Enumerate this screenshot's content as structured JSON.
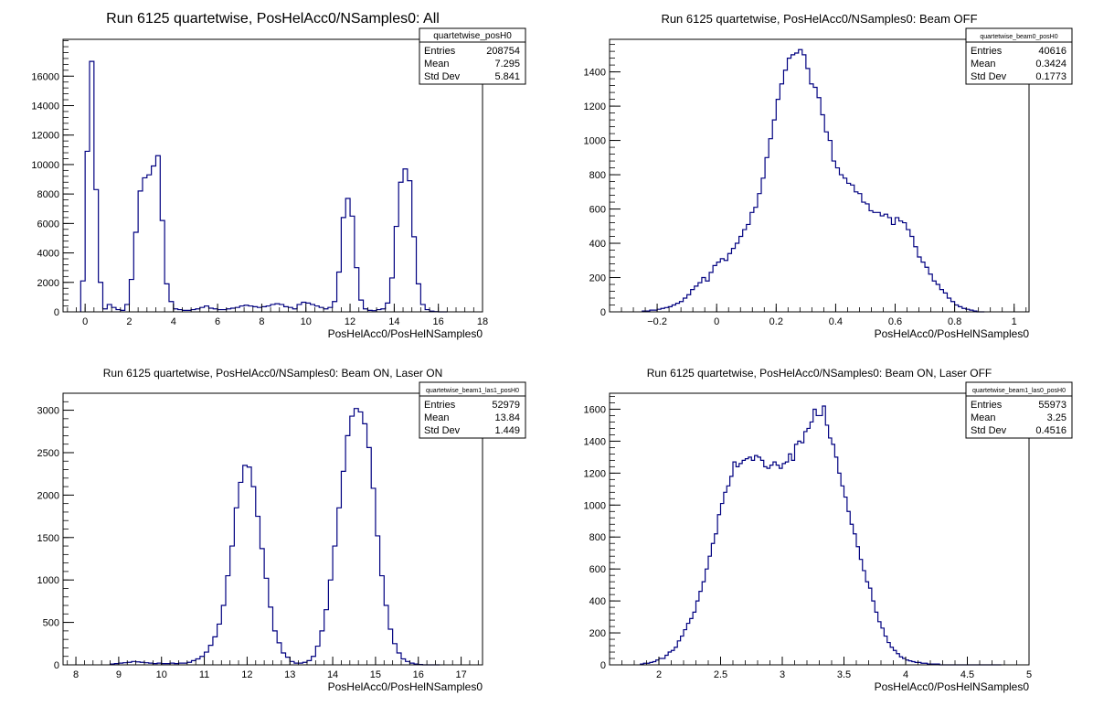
{
  "colors": {
    "histogram_line": "#000080",
    "frame": "#000000",
    "background": "#ffffff"
  },
  "chart_data": [
    {
      "type": "histogram",
      "title": "Run 6125 quartetwise, PosHelAcc0/NSamples0: All",
      "xlabel": "PosHelAcc0/PosHelNSamples0",
      "xlim": [
        -1,
        18
      ],
      "ylim": [
        0,
        18500
      ],
      "xticks": [
        0,
        2,
        4,
        6,
        8,
        10,
        12,
        14,
        16,
        18
      ],
      "yticks": [
        0,
        2000,
        4000,
        6000,
        8000,
        10000,
        12000,
        14000,
        16000
      ],
      "stats": {
        "name": "quartetwise_posH0",
        "entries": "208754",
        "mean": "7.295",
        "stddev": "5.841"
      },
      "bin_width": 0.2,
      "bins_x0": [
        -0.2,
        0.0,
        0.2,
        0.4,
        0.6,
        0.8,
        1.0,
        1.2,
        1.4,
        1.6,
        1.8,
        2.0,
        2.2,
        2.4,
        2.6,
        2.8,
        3.0,
        3.2,
        3.4,
        3.6,
        3.8,
        4.0,
        4.2,
        4.4,
        4.6,
        4.8,
        5.0,
        5.2,
        5.4,
        5.6,
        5.8,
        6.0,
        6.2,
        6.4,
        6.6,
        6.8,
        7.0,
        7.2,
        7.4,
        7.6,
        7.8,
        8.0,
        8.2,
        8.4,
        8.6,
        8.8,
        9.0,
        9.2,
        9.4,
        9.6,
        9.8,
        10.0,
        10.2,
        10.4,
        10.6,
        10.8,
        11.0,
        11.2,
        11.4,
        11.6,
        11.8,
        12.0,
        12.2,
        12.4,
        12.6,
        12.8,
        13.0,
        13.2,
        13.4,
        13.6,
        13.8,
        14.0,
        14.2,
        14.4,
        14.6,
        14.8,
        15.0,
        15.2,
        15.4,
        15.6,
        15.8,
        16.0,
        16.2
      ],
      "values": [
        2100,
        10900,
        17000,
        8300,
        2000,
        200,
        500,
        300,
        150,
        100,
        500,
        2200,
        5400,
        8200,
        9100,
        9300,
        9900,
        10600,
        6200,
        1900,
        700,
        200,
        150,
        100,
        100,
        150,
        200,
        300,
        400,
        250,
        200,
        150,
        150,
        200,
        250,
        300,
        400,
        450,
        400,
        350,
        300,
        350,
        400,
        500,
        550,
        500,
        350,
        300,
        200,
        500,
        650,
        600,
        500,
        400,
        300,
        200,
        300,
        700,
        2700,
        6400,
        7700,
        6500,
        3000,
        800,
        200,
        100,
        80,
        150,
        200,
        600,
        2300,
        5800,
        8800,
        9700,
        8900,
        5100,
        1900,
        500,
        150,
        50,
        20,
        0,
        0
      ]
    },
    {
      "type": "histogram",
      "title": "Run 6125 quartetwise, PosHelAcc0/NSamples0: Beam OFF",
      "xlabel": "PosHelAcc0/PosHelNSamples0",
      "xlim": [
        -0.36,
        1.05
      ],
      "ylim": [
        0,
        1590
      ],
      "xticks": [
        -0.2,
        0,
        0.2,
        0.4,
        0.6,
        0.8,
        1
      ],
      "xtick_labels": [
        "−0.2",
        "0",
        "0.2",
        "0.4",
        "0.6",
        "0.8",
        "1"
      ],
      "yticks": [
        0,
        200,
        400,
        600,
        800,
        1000,
        1200,
        1400
      ],
      "stats": {
        "name": "quartetwise_beam0_posH0",
        "entries": "40616",
        "mean": "0.3424",
        "stddev": "0.1773"
      },
      "bin_width": 0.0125,
      "bins_x0": [
        -0.25,
        -0.2375,
        -0.225,
        -0.2125,
        -0.2,
        -0.1875,
        -0.175,
        -0.1625,
        -0.15,
        -0.1375,
        -0.125,
        -0.1125,
        -0.1,
        -0.0875,
        -0.075,
        -0.0625,
        -0.05,
        -0.0375,
        -0.025,
        -0.0125,
        0.0,
        0.0125,
        0.025,
        0.0375,
        0.05,
        0.0625,
        0.075,
        0.0875,
        0.1,
        0.1125,
        0.125,
        0.1375,
        0.15,
        0.1625,
        0.175,
        0.1875,
        0.2,
        0.2125,
        0.225,
        0.2375,
        0.25,
        0.2625,
        0.275,
        0.2875,
        0.3,
        0.3125,
        0.325,
        0.3375,
        0.35,
        0.3625,
        0.375,
        0.3875,
        0.4,
        0.4125,
        0.425,
        0.4375,
        0.45,
        0.4625,
        0.475,
        0.4875,
        0.5,
        0.5125,
        0.525,
        0.5375,
        0.55,
        0.5625,
        0.575,
        0.5875,
        0.6,
        0.6125,
        0.625,
        0.6375,
        0.65,
        0.6625,
        0.675,
        0.6875,
        0.7,
        0.7125,
        0.725,
        0.7375,
        0.75,
        0.7625,
        0.775,
        0.7875,
        0.8,
        0.8125,
        0.825,
        0.8375,
        0.85,
        0.8625,
        0.875,
        0.8875
      ],
      "values": [
        5,
        5,
        10,
        10,
        15,
        20,
        25,
        30,
        40,
        50,
        60,
        80,
        100,
        130,
        150,
        170,
        200,
        180,
        230,
        270,
        290,
        310,
        300,
        340,
        370,
        400,
        440,
        480,
        510,
        580,
        610,
        690,
        780,
        900,
        1010,
        1120,
        1240,
        1330,
        1410,
        1480,
        1500,
        1510,
        1530,
        1500,
        1420,
        1330,
        1310,
        1250,
        1150,
        1050,
        1000,
        880,
        840,
        800,
        780,
        750,
        740,
        700,
        690,
        640,
        630,
        590,
        580,
        580,
        560,
        570,
        550,
        510,
        550,
        530,
        520,
        480,
        440,
        380,
        320,
        290,
        260,
        220,
        180,
        160,
        130,
        110,
        80,
        60,
        40,
        30,
        20,
        15,
        10,
        5,
        0,
        0
      ]
    },
    {
      "type": "histogram",
      "title": "Run 6125 quartetwise, PosHelAcc0/NSamples0: Beam ON, Laser ON",
      "xlabel": "PosHelAcc0/PosHelNSamples0",
      "xlim": [
        7.7,
        17.5
      ],
      "ylim": [
        0,
        3200
      ],
      "xticks": [
        8,
        9,
        10,
        11,
        12,
        13,
        14,
        15,
        16,
        17
      ],
      "yticks": [
        0,
        500,
        1000,
        1500,
        2000,
        2500,
        3000
      ],
      "stats": {
        "name": "quartetwise_beam1_las1_posH0",
        "entries": "52979",
        "mean": "13.84",
        "stddev": "1.449"
      },
      "bin_width": 0.1,
      "bins_x0": [
        8.8,
        8.9,
        9.0,
        9.1,
        9.2,
        9.3,
        9.4,
        9.5,
        9.6,
        9.7,
        9.8,
        9.9,
        10.0,
        10.1,
        10.2,
        10.3,
        10.4,
        10.5,
        10.6,
        10.7,
        10.8,
        10.9,
        11.0,
        11.1,
        11.2,
        11.3,
        11.4,
        11.5,
        11.6,
        11.7,
        11.8,
        11.9,
        12.0,
        12.1,
        12.2,
        12.3,
        12.4,
        12.5,
        12.6,
        12.7,
        12.8,
        12.9,
        13.0,
        13.1,
        13.2,
        13.3,
        13.4,
        13.5,
        13.6,
        13.7,
        13.8,
        13.9,
        14.0,
        14.1,
        14.2,
        14.3,
        14.4,
        14.5,
        14.6,
        14.7,
        14.8,
        14.9,
        15.0,
        15.1,
        15.2,
        15.3,
        15.4,
        15.5,
        15.6,
        15.7,
        15.8,
        15.9,
        16.0,
        16.1,
        16.2,
        16.3,
        16.4
      ],
      "values": [
        10,
        15,
        20,
        25,
        30,
        40,
        35,
        30,
        25,
        20,
        15,
        20,
        15,
        15,
        20,
        15,
        20,
        20,
        30,
        50,
        70,
        100,
        150,
        230,
        330,
        480,
        700,
        1050,
        1400,
        1850,
        2150,
        2350,
        2330,
        2100,
        1750,
        1370,
        1020,
        680,
        400,
        260,
        140,
        90,
        40,
        20,
        20,
        30,
        50,
        100,
        220,
        400,
        650,
        1000,
        1400,
        1850,
        2280,
        2700,
        2930,
        3020,
        2980,
        2840,
        2560,
        2080,
        1520,
        1050,
        700,
        420,
        250,
        140,
        70,
        40,
        20,
        10,
        5,
        0,
        0,
        0,
        0
      ]
    },
    {
      "type": "histogram",
      "title": "Run 6125 quartetwise, PosHelAcc0/NSamples0: Beam ON, Laser OFF",
      "xlabel": "PosHelAcc0/PosHelNSamples0",
      "xlim": [
        1.6,
        5.0
      ],
      "ylim": [
        0,
        1700
      ],
      "xticks": [
        2,
        2.5,
        3,
        3.5,
        4,
        4.5,
        5
      ],
      "yticks": [
        0,
        200,
        400,
        600,
        800,
        1000,
        1200,
        1400,
        1600
      ],
      "stats": {
        "name": "quartetwise_beam1_las0_posH0",
        "entries": "55973",
        "mean": "3.25",
        "stddev": "0.4516"
      },
      "bin_width": 0.025,
      "bins_x0": [
        1.85,
        1.875,
        1.9,
        1.925,
        1.95,
        1.975,
        2.0,
        2.025,
        2.05,
        2.075,
        2.1,
        2.125,
        2.15,
        2.175,
        2.2,
        2.225,
        2.25,
        2.275,
        2.3,
        2.325,
        2.35,
        2.375,
        2.4,
        2.425,
        2.45,
        2.475,
        2.5,
        2.525,
        2.55,
        2.575,
        2.6,
        2.625,
        2.65,
        2.675,
        2.7,
        2.725,
        2.75,
        2.775,
        2.8,
        2.825,
        2.85,
        2.875,
        2.9,
        2.925,
        2.95,
        2.975,
        3.0,
        3.025,
        3.05,
        3.075,
        3.1,
        3.125,
        3.15,
        3.175,
        3.2,
        3.225,
        3.25,
        3.275,
        3.3,
        3.325,
        3.35,
        3.375,
        3.4,
        3.425,
        3.45,
        3.475,
        3.5,
        3.525,
        3.55,
        3.575,
        3.6,
        3.625,
        3.65,
        3.675,
        3.7,
        3.725,
        3.75,
        3.775,
        3.8,
        3.825,
        3.85,
        3.875,
        3.9,
        3.925,
        3.95,
        3.975,
        4.0,
        4.025,
        4.05,
        4.075,
        4.1,
        4.125,
        4.15,
        4.175,
        4.2,
        4.225,
        4.25,
        4.275,
        4.3,
        4.325,
        4.35,
        4.375,
        4.4,
        4.425,
        4.45,
        4.475,
        4.5,
        4.525,
        4.55,
        4.575,
        4.6,
        4.625,
        4.65,
        4.675,
        4.7,
        4.725,
        4.75
      ],
      "values": [
        5,
        10,
        10,
        15,
        20,
        30,
        40,
        40,
        60,
        80,
        90,
        110,
        150,
        180,
        220,
        260,
        290,
        330,
        400,
        460,
        520,
        600,
        680,
        760,
        820,
        940,
        1010,
        1080,
        1120,
        1180,
        1270,
        1240,
        1260,
        1280,
        1290,
        1300,
        1280,
        1310,
        1300,
        1280,
        1240,
        1230,
        1250,
        1270,
        1250,
        1230,
        1260,
        1270,
        1320,
        1280,
        1380,
        1400,
        1390,
        1460,
        1480,
        1520,
        1600,
        1560,
        1560,
        1620,
        1500,
        1420,
        1380,
        1300,
        1200,
        1120,
        1050,
        960,
        880,
        820,
        740,
        660,
        590,
        520,
        480,
        400,
        330,
        270,
        230,
        180,
        140,
        110,
        90,
        70,
        50,
        40,
        30,
        25,
        20,
        15,
        15,
        10,
        10,
        5,
        5,
        5,
        5,
        0,
        0,
        0,
        0,
        0,
        0,
        0,
        0,
        0,
        0,
        0,
        0,
        0,
        0,
        0,
        0,
        0,
        0,
        0,
        0
      ]
    }
  ]
}
